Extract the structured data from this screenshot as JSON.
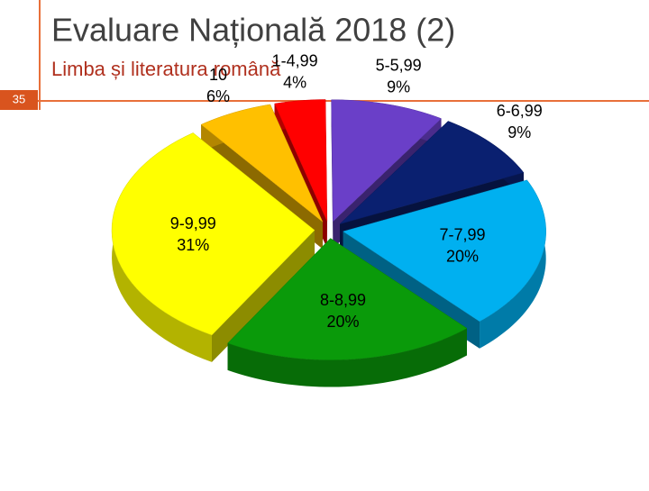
{
  "slide": {
    "number": "35"
  },
  "chart_data": {
    "type": "pie3d",
    "title": "Evaluare Națională 2018 (2)",
    "subtitle": "Limba și literatura română",
    "categories": [
      "1-4,99",
      "5-5,99",
      "6-6,99",
      "7-7,99",
      "8-8,99",
      "9-9,99",
      "10"
    ],
    "values": [
      4,
      9,
      9,
      20,
      20,
      31,
      6
    ],
    "value_labels": [
      "4%",
      "9%",
      "9%",
      "20%",
      "20%",
      "31%",
      "6%"
    ],
    "colors": [
      "#ff0000",
      "#6a3fc8",
      "#0a2070",
      "#00b0f0",
      "#0a9a0a",
      "#ffff00",
      "#ffc000"
    ]
  }
}
